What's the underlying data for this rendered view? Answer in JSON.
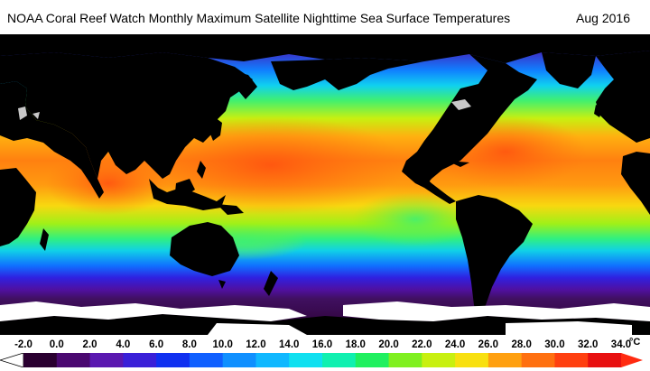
{
  "header": {
    "title": "NOAA Coral Reef Watch Monthly Maximum Satellite Nighttime Sea Surface Temperatures",
    "date": "Aug 2016"
  },
  "map": {
    "projection": "equirectangular",
    "center_longitude": "180",
    "colors": {
      "land": "#000000",
      "sea_ice": "#ffffff",
      "no_data_lakes": "#c8c8c8"
    }
  },
  "scale": {
    "ticks": [
      "-2.0",
      "0.0",
      "2.0",
      "4.0",
      "6.0",
      "8.0",
      "10.0",
      "12.0",
      "14.0",
      "16.0",
      "18.0",
      "20.0",
      "22.0",
      "24.0",
      "26.0",
      "28.0",
      "30.0",
      "32.0",
      "34.0"
    ],
    "unit": "°C",
    "min": -2.0,
    "max": 34.0,
    "stops": [
      {
        "v": -2.0,
        "c": "#000000"
      },
      {
        "v": 0.0,
        "c": "#2a0030"
      },
      {
        "v": 2.0,
        "c": "#4a0870"
      },
      {
        "v": 4.0,
        "c": "#5a18b0"
      },
      {
        "v": 6.0,
        "c": "#3a20d8"
      },
      {
        "v": 8.0,
        "c": "#1030f0"
      },
      {
        "v": 10.0,
        "c": "#1060ff"
      },
      {
        "v": 12.0,
        "c": "#1090ff"
      },
      {
        "v": 14.0,
        "c": "#10b8ff"
      },
      {
        "v": 16.0,
        "c": "#10e0f0"
      },
      {
        "v": 18.0,
        "c": "#10f0b0"
      },
      {
        "v": 20.0,
        "c": "#20f060"
      },
      {
        "v": 22.0,
        "c": "#80f020"
      },
      {
        "v": 24.0,
        "c": "#c8f010"
      },
      {
        "v": 26.0,
        "c": "#f8e010"
      },
      {
        "v": 28.0,
        "c": "#ffa010"
      },
      {
        "v": 30.0,
        "c": "#ff7010"
      },
      {
        "v": 32.0,
        "c": "#ff4010"
      },
      {
        "v": 34.0,
        "c": "#e81010"
      }
    ]
  }
}
